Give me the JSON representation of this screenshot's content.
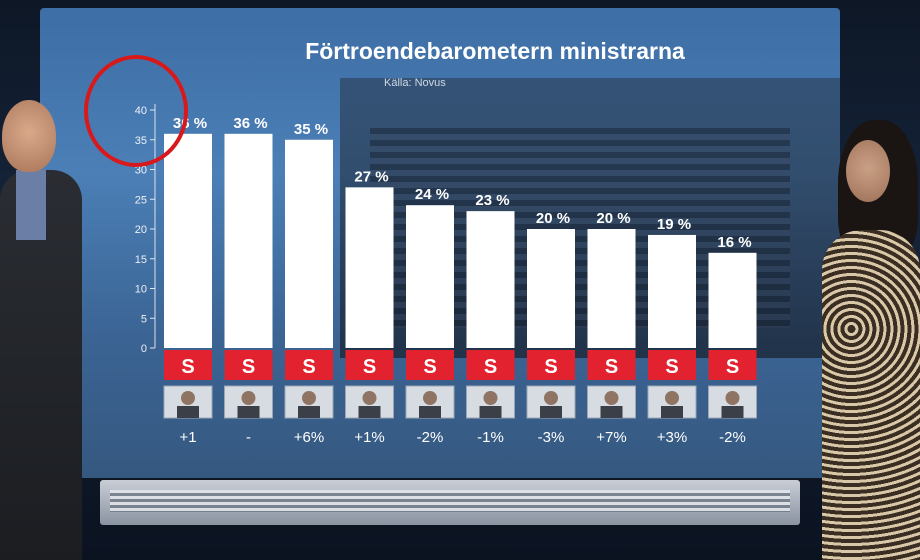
{
  "chart_data": {
    "type": "bar",
    "title": "Förtroendebarometern ministrarna",
    "subtitle": "Källa: Novus",
    "ylim": [
      0,
      40
    ],
    "yticks": [
      "0",
      "5",
      "10",
      "15",
      "20",
      "25",
      "30",
      "35",
      "40"
    ],
    "values": [
      36,
      36,
      35,
      27,
      24,
      23,
      20,
      20,
      19,
      16
    ],
    "value_labels": [
      "36 %",
      "36 %",
      "35 %",
      "27 %",
      "24 %",
      "23 %",
      "20 %",
      "20 %",
      "19 %",
      "16 %"
    ],
    "party_labels": [
      "S",
      "S",
      "S",
      "S",
      "S",
      "S",
      "S",
      "S",
      "S",
      "S"
    ],
    "changes": [
      "+1",
      "-",
      "+6%",
      "+1%",
      "-2%",
      "-1%",
      "-3%",
      "+7%",
      "+3%",
      "-2%"
    ],
    "bar_color": "#ffffff",
    "party_color": "#e2232f"
  }
}
